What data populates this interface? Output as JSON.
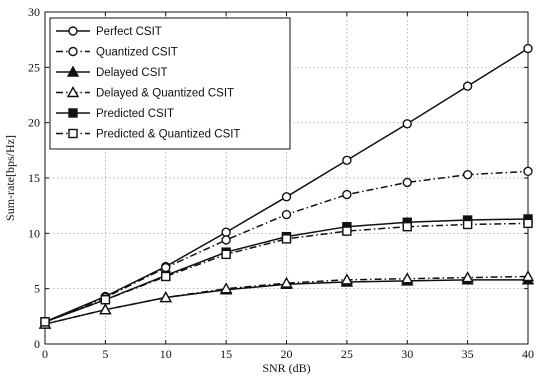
{
  "chart_data": {
    "type": "line",
    "xlabel": "SNR (dB)",
    "ylabel": "Sum-rate[bps/Hz]",
    "xlim": [
      0,
      40
    ],
    "ylim": [
      0,
      30
    ],
    "xticks": [
      0,
      5,
      10,
      15,
      20,
      25,
      30,
      35,
      40
    ],
    "yticks": [
      0,
      5,
      10,
      15,
      20,
      25,
      30
    ],
    "grid": true,
    "legend_position": "top-left",
    "x": [
      0,
      5,
      10,
      15,
      20,
      25,
      30,
      35,
      40
    ],
    "series": [
      {
        "name": "Perfect CSIT",
        "marker": "circle",
        "fill": "none",
        "dash": "solid",
        "values": [
          2.0,
          4.3,
          7.0,
          10.1,
          13.3,
          16.6,
          19.9,
          23.3,
          26.7
        ]
      },
      {
        "name": "Quantized CSIT",
        "marker": "circle",
        "fill": "none",
        "dash": "dashdot",
        "values": [
          2.0,
          4.2,
          6.9,
          9.4,
          11.7,
          13.5,
          14.6,
          15.3,
          15.6
        ]
      },
      {
        "name": "Delayed CSIT",
        "marker": "triangle",
        "fill": "filled",
        "dash": "solid",
        "values": [
          1.8,
          3.1,
          4.2,
          4.9,
          5.4,
          5.6,
          5.7,
          5.8,
          5.8
        ]
      },
      {
        "name": "Delayed & Quantized CSIT",
        "marker": "triangle",
        "fill": "none",
        "dash": "dashdot",
        "values": [
          1.8,
          3.1,
          4.2,
          5.0,
          5.5,
          5.8,
          5.9,
          6.0,
          6.1
        ]
      },
      {
        "name": "Predicted CSIT",
        "marker": "square",
        "fill": "filled",
        "dash": "solid",
        "values": [
          2.0,
          4.0,
          6.2,
          8.3,
          9.7,
          10.6,
          11.0,
          11.2,
          11.3
        ]
      },
      {
        "name": "Predicted & Quantized CSIT",
        "marker": "square",
        "fill": "none",
        "dash": "dashdot",
        "values": [
          2.0,
          4.0,
          6.1,
          8.1,
          9.5,
          10.2,
          10.6,
          10.8,
          10.9
        ]
      }
    ]
  }
}
